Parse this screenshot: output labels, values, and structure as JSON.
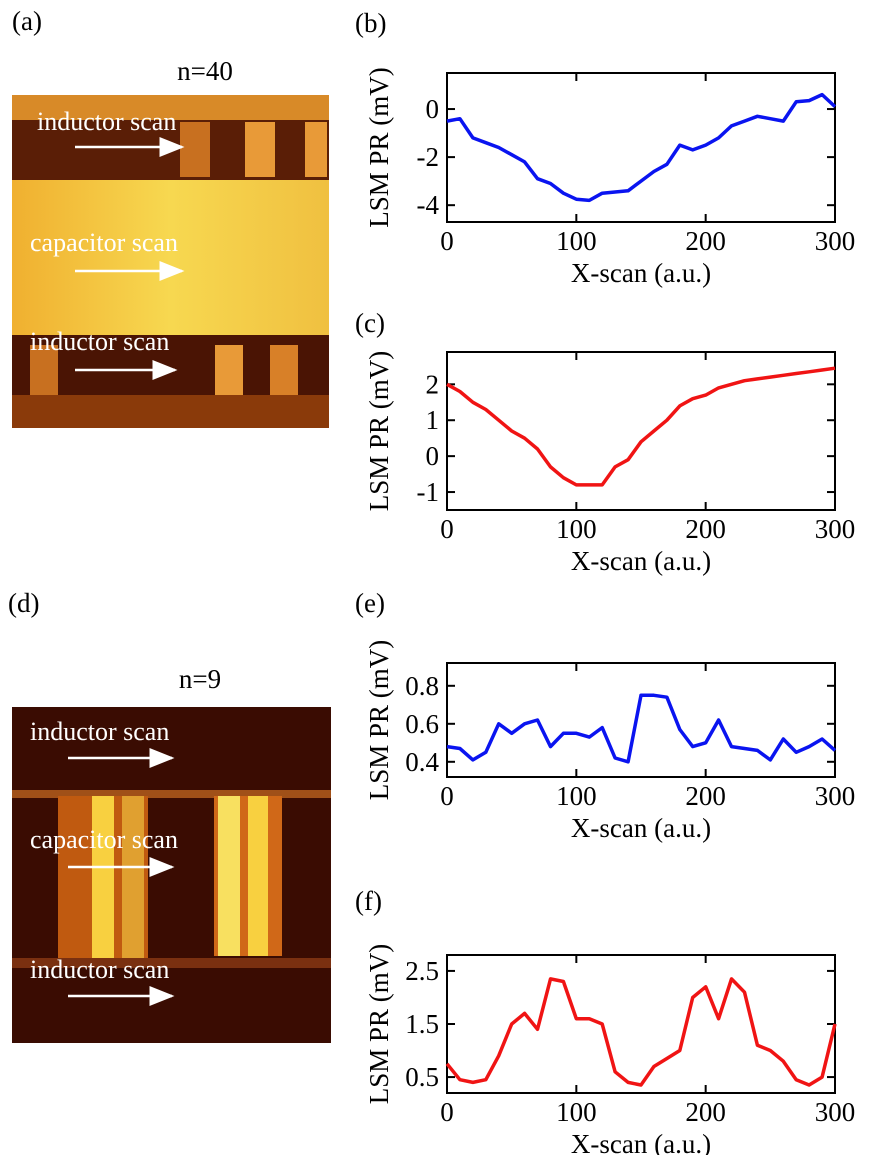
{
  "panels": [
    {
      "label": "(a)",
      "title": "n=40",
      "annotations": [
        "inductor scan",
        "capacitor scan",
        "inductor scan"
      ]
    },
    {
      "label": "(d)",
      "title": "n=9",
      "annotations": [
        "inductor scan",
        "capacitor scan",
        "inductor scan"
      ]
    }
  ],
  "chart_data": [
    {
      "type": "line",
      "label": "(b)",
      "xlabel": "X-scan (a.u.)",
      "ylabel": "LSM PR (mV)",
      "x": [
        0,
        10,
        20,
        30,
        40,
        50,
        60,
        70,
        80,
        90,
        100,
        110,
        120,
        130,
        140,
        150,
        160,
        170,
        180,
        190,
        200,
        210,
        220,
        230,
        240,
        250,
        260,
        270,
        280,
        290,
        300
      ],
      "xlim": [
        0,
        300
      ],
      "xticks": [
        0,
        100,
        200,
        300
      ],
      "ylim": [
        -4.7,
        1.5
      ],
      "yticks": [
        -4,
        -2,
        0
      ],
      "series": [
        {
          "color": "#0a14f0",
          "values": [
            -0.5,
            -0.4,
            -1.2,
            -1.4,
            -1.6,
            -1.9,
            -2.2,
            -2.9,
            -3.1,
            -3.5,
            -3.75,
            -3.8,
            -3.5,
            -3.45,
            -3.4,
            -3.0,
            -2.6,
            -2.3,
            -1.5,
            -1.7,
            -1.5,
            -1.2,
            -0.7,
            -0.5,
            -0.3,
            -0.4,
            -0.5,
            0.3,
            0.35,
            0.6,
            0.1
          ]
        }
      ]
    },
    {
      "type": "line",
      "label": "(c)",
      "xlabel": "X-scan (a.u.)",
      "ylabel": "LSM PR (mV)",
      "x": [
        0,
        10,
        20,
        30,
        40,
        50,
        60,
        70,
        80,
        90,
        100,
        110,
        120,
        130,
        140,
        150,
        160,
        170,
        180,
        190,
        200,
        210,
        220,
        230,
        240,
        250,
        260,
        270,
        280,
        290,
        300
      ],
      "xlim": [
        0,
        300
      ],
      "xticks": [
        0,
        100,
        200,
        300
      ],
      "ylim": [
        -1.5,
        2.9
      ],
      "yticks": [
        -1,
        0,
        1,
        2
      ],
      "series": [
        {
          "color": "#f01414",
          "values": [
            2.0,
            1.8,
            1.5,
            1.3,
            1.0,
            0.7,
            0.5,
            0.2,
            -0.3,
            -0.6,
            -0.8,
            -0.8,
            -0.8,
            -0.3,
            -0.1,
            0.4,
            0.7,
            1.0,
            1.4,
            1.6,
            1.7,
            1.9,
            2.0,
            2.1,
            2.15,
            2.2,
            2.25,
            2.3,
            2.35,
            2.4,
            2.45
          ]
        }
      ]
    },
    {
      "type": "line",
      "label": "(e)",
      "xlabel": "X-scan (a.u.)",
      "ylabel": "LSM PR (mV)",
      "x": [
        0,
        10,
        20,
        30,
        40,
        50,
        60,
        70,
        80,
        90,
        100,
        110,
        120,
        130,
        140,
        150,
        160,
        170,
        180,
        190,
        200,
        210,
        220,
        230,
        240,
        250,
        260,
        270,
        280,
        290,
        300
      ],
      "xlim": [
        0,
        300
      ],
      "xticks": [
        0,
        100,
        200,
        300
      ],
      "ylim": [
        0.32,
        0.92
      ],
      "yticks": [
        0.4,
        0.6,
        0.8
      ],
      "series": [
        {
          "color": "#0a14f0",
          "values": [
            0.48,
            0.47,
            0.41,
            0.45,
            0.6,
            0.55,
            0.6,
            0.62,
            0.48,
            0.55,
            0.55,
            0.53,
            0.58,
            0.42,
            0.4,
            0.75,
            0.75,
            0.74,
            0.57,
            0.48,
            0.5,
            0.62,
            0.48,
            0.47,
            0.46,
            0.41,
            0.52,
            0.45,
            0.48,
            0.52,
            0.46
          ]
        }
      ]
    },
    {
      "type": "line",
      "label": "(f)",
      "xlabel": "X-scan (a.u.)",
      "ylabel": "LSM PR (mV)",
      "x": [
        0,
        10,
        20,
        30,
        40,
        50,
        60,
        70,
        80,
        90,
        100,
        110,
        120,
        130,
        140,
        150,
        160,
        170,
        180,
        190,
        200,
        210,
        220,
        230,
        240,
        250,
        260,
        270,
        280,
        290,
        300
      ],
      "xlim": [
        0,
        300
      ],
      "xticks": [
        0,
        100,
        200,
        300
      ],
      "ylim": [
        0.2,
        2.8
      ],
      "yticks": [
        0.5,
        1.5,
        2.5
      ],
      "series": [
        {
          "color": "#f01414",
          "values": [
            0.75,
            0.45,
            0.4,
            0.45,
            0.9,
            1.5,
            1.7,
            1.4,
            2.35,
            2.3,
            1.6,
            1.6,
            1.5,
            0.6,
            0.4,
            0.35,
            0.7,
            0.85,
            1.0,
            2.0,
            2.2,
            1.6,
            2.35,
            2.1,
            1.1,
            1.0,
            0.8,
            0.45,
            0.35,
            0.5,
            1.5
          ]
        }
      ]
    }
  ]
}
